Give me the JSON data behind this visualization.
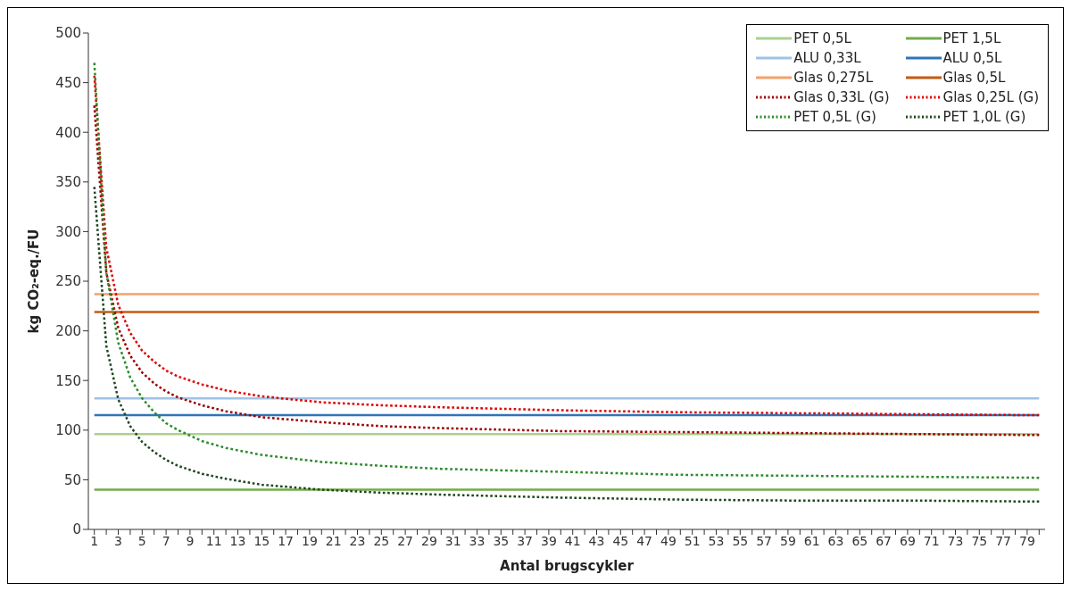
{
  "chart_data": {
    "type": "line",
    "xlabel": "Antal brugscykler",
    "ylabel": "kg CO₂-eq./FU",
    "xlim": [
      0.5,
      80.5
    ],
    "xticks": [
      1,
      {
        "value": 2,
        "label": null
      },
      3,
      {
        "value": 4,
        "label": null
      },
      5,
      {
        "value": 6,
        "label": null
      },
      7,
      {
        "value": 8,
        "label": null
      },
      9,
      {
        "value": 10,
        "label": null
      },
      11,
      {
        "value": 12,
        "label": null
      },
      13,
      {
        "value": 14,
        "label": null
      },
      15,
      {
        "value": 16,
        "label": null
      },
      17,
      {
        "value": 18,
        "label": null
      },
      19,
      {
        "value": 20,
        "label": null
      },
      21,
      {
        "value": 22,
        "label": null
      },
      23,
      {
        "value": 24,
        "label": null
      },
      25,
      {
        "value": 26,
        "label": null
      },
      27,
      {
        "value": 28,
        "label": null
      },
      29,
      {
        "value": 30,
        "label": null
      },
      31,
      {
        "value": 32,
        "label": null
      },
      33,
      {
        "value": 34,
        "label": null
      },
      35,
      {
        "value": 36,
        "label": null
      },
      37,
      {
        "value": 38,
        "label": null
      },
      39,
      {
        "value": 40,
        "label": null
      },
      41,
      {
        "value": 42,
        "label": null
      },
      43,
      {
        "value": 44,
        "label": null
      },
      45,
      {
        "value": 46,
        "label": null
      },
      47,
      {
        "value": 48,
        "label": null
      },
      49,
      {
        "value": 50,
        "label": null
      },
      51,
      {
        "value": 52,
        "label": null
      },
      53,
      {
        "value": 54,
        "label": null
      },
      55,
      {
        "value": 56,
        "label": null
      },
      57,
      {
        "value": 58,
        "label": null
      },
      59,
      {
        "value": 60,
        "label": null
      },
      61,
      {
        "value": 62,
        "label": null
      },
      63,
      {
        "value": 64,
        "label": null
      },
      65,
      {
        "value": 66,
        "label": null
      },
      67,
      {
        "value": 68,
        "label": null
      },
      69,
      {
        "value": 70,
        "label": null
      },
      71,
      {
        "value": 72,
        "label": null
      },
      73,
      {
        "value": 74,
        "label": null
      },
      75,
      {
        "value": 76,
        "label": null
      },
      77,
      {
        "value": 78,
        "label": null
      },
      79,
      {
        "value": 80,
        "label": null
      }
    ],
    "ylim": [
      0,
      500
    ],
    "yticks": [
      0,
      50,
      100,
      150,
      200,
      250,
      300,
      350,
      400,
      450,
      500
    ],
    "grid": false,
    "legend": "top right",
    "marker": "none",
    "series": [
      {
        "name": "PET 0,5L",
        "color": "#a9d18e",
        "line_style": "solid",
        "x": [
          1,
          80
        ],
        "values": [
          96,
          96
        ]
      },
      {
        "name": "PET 1,5L",
        "color": "#70ad47",
        "line_style": "solid",
        "x": [
          1,
          80
        ],
        "values": [
          40,
          40
        ]
      },
      {
        "name": "ALU 0,33L",
        "color": "#9dc3e6",
        "line_style": "solid",
        "x": [
          1,
          80
        ],
        "values": [
          132,
          132
        ]
      },
      {
        "name": "ALU 0,5L",
        "color": "#2e75b6",
        "line_style": "solid",
        "x": [
          1,
          80
        ],
        "values": [
          115,
          115
        ]
      },
      {
        "name": "Glas 0,275L",
        "color": "#f4a06a",
        "line_style": "solid",
        "x": [
          1,
          80
        ],
        "values": [
          237,
          237
        ]
      },
      {
        "name": "Glas 0,5L",
        "color": "#c55a11",
        "line_style": "solid",
        "x": [
          1,
          80
        ],
        "values": [
          219,
          219
        ]
      },
      {
        "name": "Glas 0,33L (G)",
        "color": "#9b0000",
        "line_style": "dotted",
        "x": [
          1,
          2,
          3,
          4,
          5,
          6,
          7,
          8,
          10,
          12,
          15,
          20,
          25,
          30,
          40,
          50,
          60,
          70,
          80
        ],
        "values": [
          427,
          259,
          203,
          175,
          158,
          147,
          139,
          133,
          125,
          119,
          113,
          108,
          104,
          102,
          99,
          98,
          97,
          96,
          95
        ]
      },
      {
        "name": "Glas 0,25L (G)",
        "color": "#e00000",
        "line_style": "dotted",
        "x": [
          1,
          2,
          3,
          4,
          5,
          6,
          7,
          8,
          10,
          12,
          15,
          20,
          25,
          30,
          40,
          50,
          60,
          70,
          80
        ],
        "values": [
          457,
          284,
          226,
          198,
          180,
          169,
          160,
          154,
          146,
          140,
          134,
          128,
          125,
          123,
          120,
          118,
          117,
          116,
          115
        ]
      },
      {
        "name": "PET 0,5L (G)",
        "color": "#2e8b2e",
        "line_style": "dotted",
        "x": [
          1,
          2,
          3,
          4,
          5,
          6,
          7,
          8,
          10,
          12,
          15,
          20,
          25,
          30,
          40,
          50,
          60,
          70,
          80
        ],
        "values": [
          470,
          259,
          188,
          153,
          132,
          118,
          107,
          100,
          89,
          82,
          75,
          68,
          64,
          61,
          58,
          55,
          54,
          53,
          52
        ]
      },
      {
        "name": "PET 1,0L (G)",
        "color": "#1e4620",
        "line_style": "dotted",
        "x": [
          1,
          2,
          3,
          4,
          5,
          6,
          7,
          8,
          10,
          12,
          15,
          20,
          25,
          30,
          40,
          50,
          60,
          70,
          80
        ],
        "values": [
          345,
          185,
          131,
          104,
          88,
          78,
          70,
          64,
          56,
          51,
          45,
          40,
          37,
          35,
          32,
          30,
          29,
          29,
          28
        ]
      }
    ]
  }
}
